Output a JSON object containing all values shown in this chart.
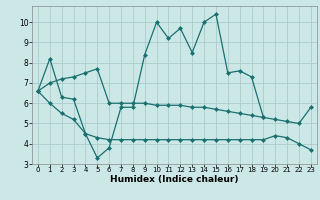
{
  "xlabel": "Humidex (Indice chaleur)",
  "bg_color": "#cce8e6",
  "grid_color": "#aacccc",
  "line_color": "#1a7070",
  "xlim": [
    -0.5,
    23.5
  ],
  "ylim": [
    3.0,
    10.8
  ],
  "yticks": [
    3,
    4,
    5,
    6,
    7,
    8,
    9,
    10
  ],
  "xticks": [
    0,
    1,
    2,
    3,
    4,
    5,
    6,
    7,
    8,
    9,
    10,
    11,
    12,
    13,
    14,
    15,
    16,
    17,
    18,
    19,
    20,
    21,
    22,
    23
  ],
  "line1_x": [
    0,
    1,
    2,
    3,
    4,
    5,
    6,
    7,
    8,
    9,
    10,
    11,
    12,
    13,
    14,
    15,
    16,
    17,
    18,
    19
  ],
  "line1_y": [
    6.6,
    8.2,
    6.3,
    6.2,
    4.5,
    3.3,
    3.8,
    5.8,
    5.8,
    8.4,
    10.0,
    9.2,
    9.7,
    8.5,
    10.0,
    10.4,
    7.5,
    7.6,
    7.3,
    5.3
  ],
  "line2_x": [
    0,
    1,
    2,
    3,
    4,
    5,
    6,
    7,
    8,
    9,
    10,
    11,
    12,
    13,
    14,
    15,
    16,
    17,
    18,
    19,
    20,
    21,
    22,
    23
  ],
  "line2_y": [
    6.6,
    7.0,
    7.2,
    7.3,
    7.5,
    7.7,
    6.0,
    6.0,
    6.0,
    6.0,
    5.9,
    5.9,
    5.9,
    5.8,
    5.8,
    5.7,
    5.6,
    5.5,
    5.4,
    5.3,
    5.2,
    5.1,
    5.0,
    5.8
  ],
  "line3_x": [
    0,
    1,
    2,
    3,
    4,
    5,
    6,
    7,
    8,
    9,
    10,
    11,
    12,
    13,
    14,
    15,
    16,
    17,
    18,
    19,
    20,
    21,
    22,
    23
  ],
  "line3_y": [
    6.6,
    6.0,
    5.5,
    5.2,
    4.5,
    4.3,
    4.2,
    4.2,
    4.2,
    4.2,
    4.2,
    4.2,
    4.2,
    4.2,
    4.2,
    4.2,
    4.2,
    4.2,
    4.2,
    4.2,
    4.4,
    4.3,
    4.0,
    3.7
  ]
}
